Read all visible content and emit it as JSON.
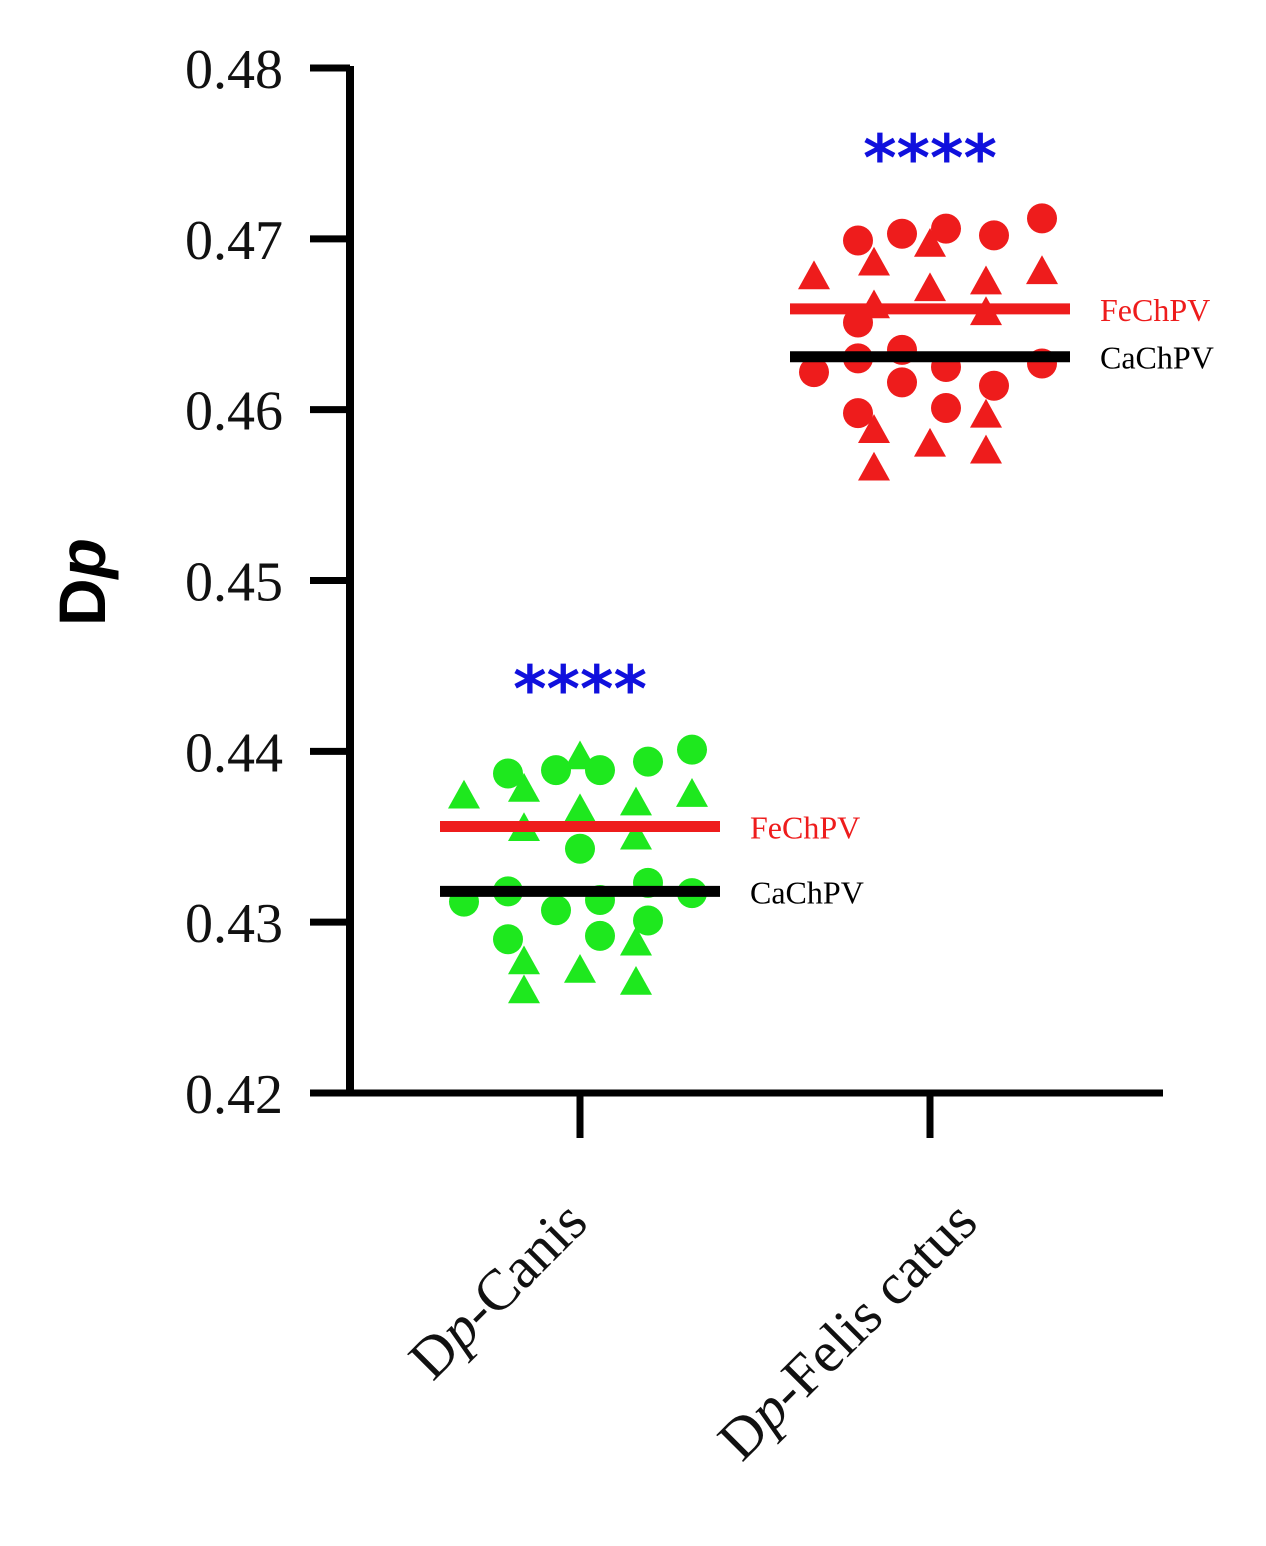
{
  "chart_data": {
    "type": "scatter",
    "ylabel_main": "D",
    "ylabel_italic": "p",
    "ylim": [
      0.42,
      0.48
    ],
    "yticks": [
      "0.42",
      "0.43",
      "0.44",
      "0.45",
      "0.46",
      "0.47",
      "0.48"
    ],
    "categories": [
      {
        "prefix": "D",
        "italic": "p",
        "rest": "-Canis"
      },
      {
        "prefix": "D",
        "italic": "p",
        "rest": "-Felis catus"
      }
    ],
    "colors": {
      "canis": "#1ee81e",
      "felis": "#ee1c1c",
      "fechpv": "#ee1c1c",
      "cachpv": "#000000",
      "stars": "#1010dd"
    },
    "groups": [
      {
        "category_index": 0,
        "color": "#1ee81e",
        "significance": "****",
        "means": [
          {
            "name": "FeChPV",
            "value": 0.4356,
            "color": "#ee1c1c"
          },
          {
            "name": "CaChPV",
            "value": 0.4318,
            "color": "#000000"
          }
        ],
        "circles": [
          {
            "x": -0.18,
            "y": 0.4387
          },
          {
            "x": -0.06,
            "y": 0.4389
          },
          {
            "x": 0.05,
            "y": 0.4389
          },
          {
            "x": 0.17,
            "y": 0.4394
          },
          {
            "x": 0.28,
            "y": 0.4401
          },
          {
            "x": 0.0,
            "y": 0.4343
          },
          {
            "x": -0.29,
            "y": 0.4312
          },
          {
            "x": -0.18,
            "y": 0.4318
          },
          {
            "x": -0.06,
            "y": 0.4307
          },
          {
            "x": 0.05,
            "y": 0.4313
          },
          {
            "x": 0.17,
            "y": 0.4323
          },
          {
            "x": 0.28,
            "y": 0.4317
          },
          {
            "x": -0.18,
            "y": 0.429
          },
          {
            "x": 0.05,
            "y": 0.4292
          },
          {
            "x": 0.17,
            "y": 0.4301
          }
        ],
        "triangles": [
          {
            "x": -0.29,
            "y": 0.4374
          },
          {
            "x": -0.14,
            "y": 0.4378
          },
          {
            "x": 0.0,
            "y": 0.4397
          },
          {
            "x": 0.14,
            "y": 0.437
          },
          {
            "x": 0.28,
            "y": 0.4375
          },
          {
            "x": -0.14,
            "y": 0.4355
          },
          {
            "x": 0.0,
            "y": 0.4366
          },
          {
            "x": 0.14,
            "y": 0.435
          },
          {
            "x": -0.14,
            "y": 0.4277
          },
          {
            "x": 0.14,
            "y": 0.4288
          },
          {
            "x": -0.14,
            "y": 0.426
          },
          {
            "x": 0.0,
            "y": 0.4272
          },
          {
            "x": 0.14,
            "y": 0.4265
          }
        ]
      },
      {
        "category_index": 1,
        "color": "#ee1c1c",
        "significance": "****",
        "means": [
          {
            "name": "FeChPV",
            "value": 0.4659,
            "color": "#ee1c1c"
          },
          {
            "name": "CaChPV",
            "value": 0.4631,
            "color": "#000000"
          }
        ],
        "circles": [
          {
            "x": -0.18,
            "y": 0.4699
          },
          {
            "x": -0.07,
            "y": 0.4703
          },
          {
            "x": 0.04,
            "y": 0.4706
          },
          {
            "x": 0.16,
            "y": 0.4702
          },
          {
            "x": 0.28,
            "y": 0.4712
          },
          {
            "x": -0.18,
            "y": 0.4651
          },
          {
            "x": -0.29,
            "y": 0.4622
          },
          {
            "x": -0.18,
            "y": 0.463
          },
          {
            "x": -0.07,
            "y": 0.4635
          },
          {
            "x": -0.07,
            "y": 0.4616
          },
          {
            "x": 0.04,
            "y": 0.4625
          },
          {
            "x": 0.16,
            "y": 0.4614
          },
          {
            "x": 0.28,
            "y": 0.4627
          },
          {
            "x": -0.18,
            "y": 0.4598
          },
          {
            "x": 0.04,
            "y": 0.4601
          }
        ],
        "triangles": [
          {
            "x": -0.29,
            "y": 0.4678
          },
          {
            "x": -0.14,
            "y": 0.4686
          },
          {
            "x": 0.0,
            "y": 0.4697
          },
          {
            "x": 0.14,
            "y": 0.4675
          },
          {
            "x": 0.28,
            "y": 0.4681
          },
          {
            "x": -0.14,
            "y": 0.4661
          },
          {
            "x": 0.0,
            "y": 0.4671
          },
          {
            "x": 0.14,
            "y": 0.4657
          },
          {
            "x": -0.14,
            "y": 0.4588
          },
          {
            "x": 0.14,
            "y": 0.4597
          },
          {
            "x": -0.14,
            "y": 0.4566
          },
          {
            "x": 0.0,
            "y": 0.458
          },
          {
            "x": 0.14,
            "y": 0.4576
          }
        ]
      }
    ]
  }
}
